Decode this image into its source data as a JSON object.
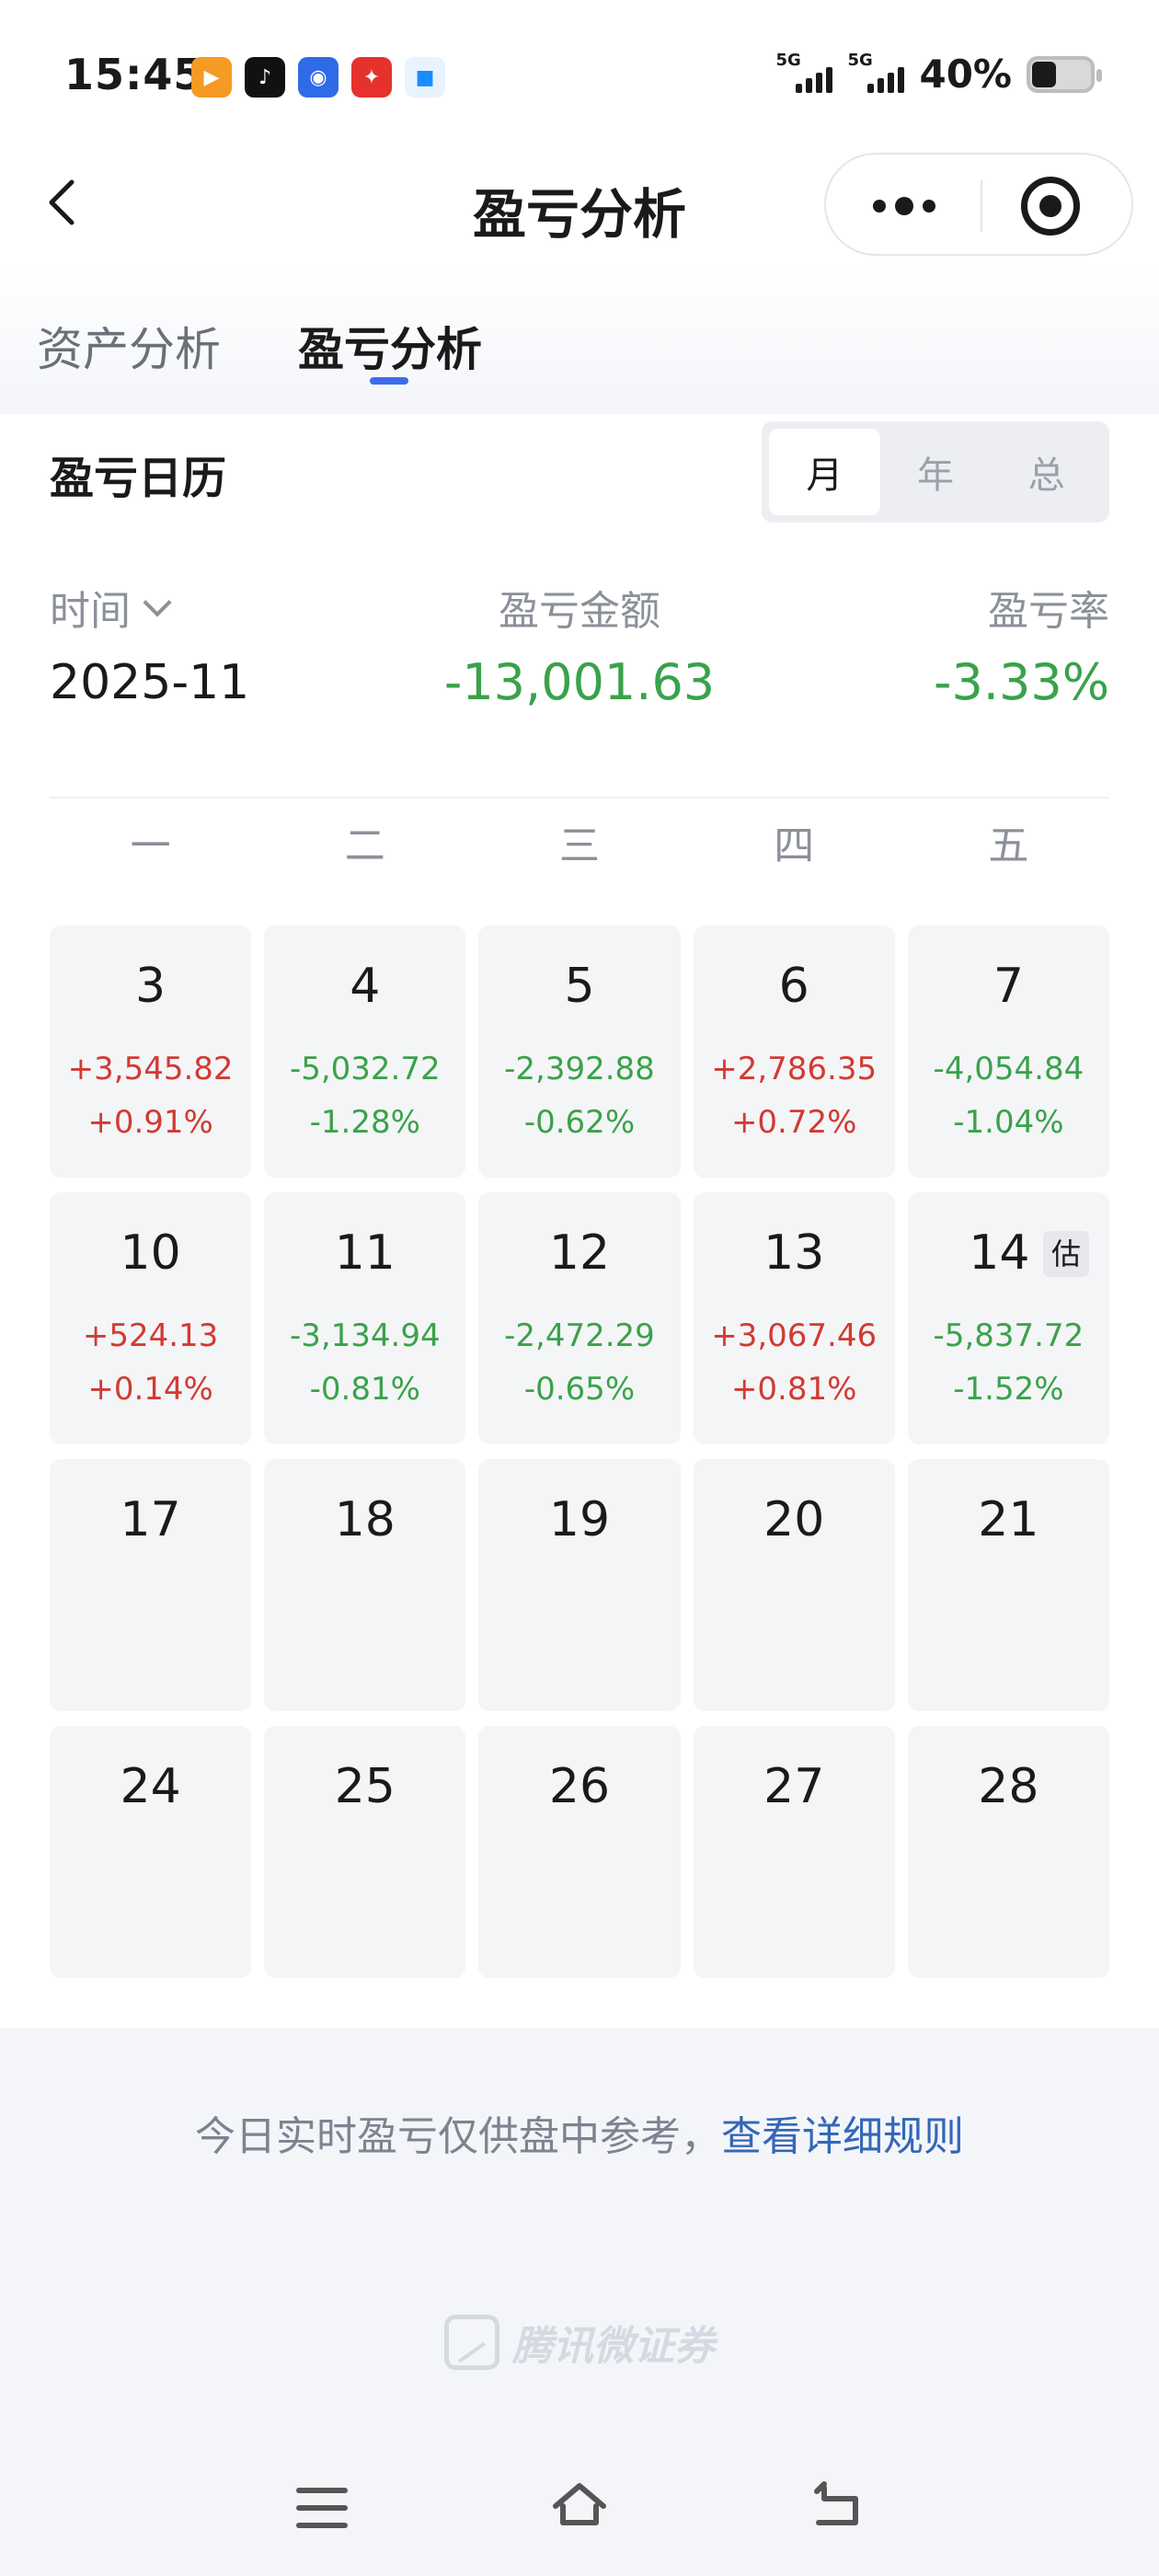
{
  "status_bar": {
    "time": "15:45",
    "app_icons": [
      "video-app-icon",
      "tiktok-icon",
      "baidu-icon",
      "shopping-app-icon",
      "cloud-app-icon"
    ],
    "signal1": "5G",
    "signal2": "5G",
    "battery": "40%"
  },
  "header": {
    "title": "盈亏分析"
  },
  "tabs": [
    {
      "label": "资产分析",
      "active": false
    },
    {
      "label": "盈亏分析",
      "active": true
    }
  ],
  "calendar": {
    "title": "盈亏日历",
    "segments": [
      "月",
      "年",
      "总"
    ],
    "active_segment": "月",
    "time_label": "时间",
    "amount_label": "盈亏金额",
    "rate_label": "盈亏率",
    "month": "2025-11",
    "amount": "-13,001.63",
    "rate": "-3.33%",
    "weekdays": [
      "一",
      "二",
      "三",
      "四",
      "五"
    ],
    "days": [
      {
        "day": "3",
        "amount": "+3,545.82",
        "pct": "+0.91%",
        "sign": "pos"
      },
      {
        "day": "4",
        "amount": "-5,032.72",
        "pct": "-1.28%",
        "sign": "neg"
      },
      {
        "day": "5",
        "amount": "-2,392.88",
        "pct": "-0.62%",
        "sign": "neg"
      },
      {
        "day": "6",
        "amount": "+2,786.35",
        "pct": "+0.72%",
        "sign": "pos"
      },
      {
        "day": "7",
        "amount": "-4,054.84",
        "pct": "-1.04%",
        "sign": "neg"
      },
      {
        "day": "10",
        "amount": "+524.13",
        "pct": "+0.14%",
        "sign": "pos"
      },
      {
        "day": "11",
        "amount": "-3,134.94",
        "pct": "-0.81%",
        "sign": "neg"
      },
      {
        "day": "12",
        "amount": "-2,472.29",
        "pct": "-0.65%",
        "sign": "neg"
      },
      {
        "day": "13",
        "amount": "+3,067.46",
        "pct": "+0.81%",
        "sign": "pos"
      },
      {
        "day": "14",
        "amount": "-5,837.72",
        "pct": "-1.52%",
        "sign": "neg",
        "badge": "估"
      },
      {
        "day": "17"
      },
      {
        "day": "18"
      },
      {
        "day": "19"
      },
      {
        "day": "20"
      },
      {
        "day": "21"
      },
      {
        "day": "24"
      },
      {
        "day": "25"
      },
      {
        "day": "26"
      },
      {
        "day": "27"
      },
      {
        "day": "28"
      }
    ]
  },
  "footer": {
    "notice": "今日实时盈亏仅供盘中参考，",
    "link": "查看详细规则",
    "watermark": "腾讯微证券"
  },
  "colors": {
    "positive": "#d23a33",
    "negative": "#3aa24a",
    "accent": "#3b6ee8",
    "link": "#3467b8"
  }
}
